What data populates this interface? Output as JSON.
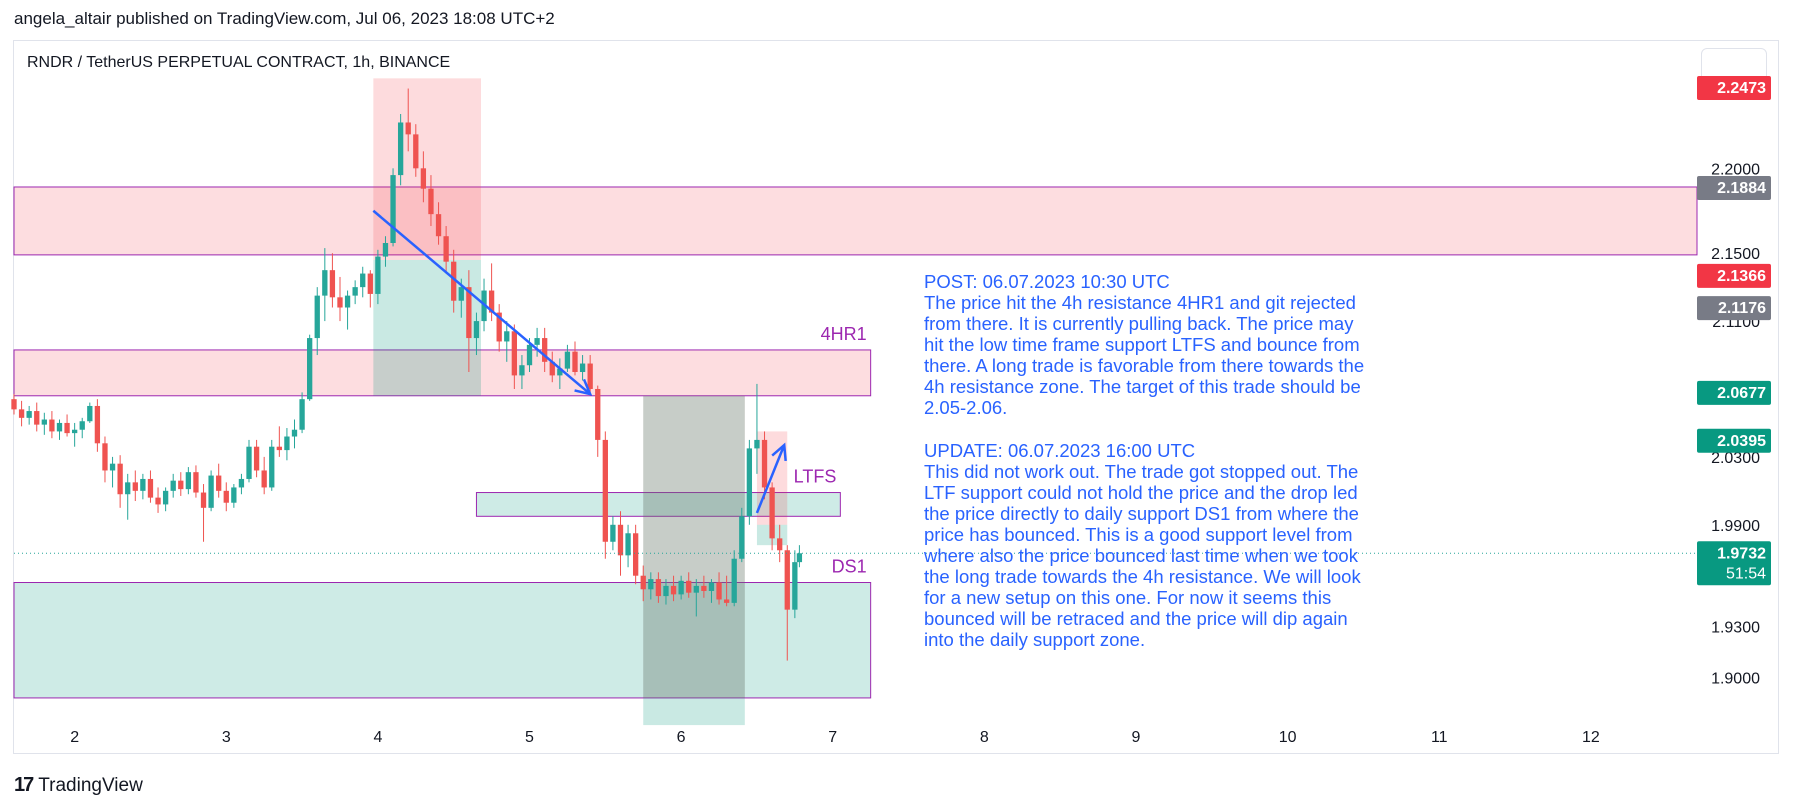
{
  "header": {
    "text": "angela_altair published on TradingView.com, Jul 06, 2023 18:08 UTC+2"
  },
  "chart": {
    "title": "RNDR / TetherUS PERPETUAL CONTRACT, 1h, BINANCE"
  },
  "footer": {
    "brand": "TradingView",
    "logo": "17"
  },
  "colors": {
    "up": "#26a69a",
    "down": "#ef5350",
    "zone_red": "rgba(242,54,69,0.17)",
    "zone_green": "rgba(8,153,129,0.20)",
    "zone_border": "#9c27b0",
    "annotation": "#2962ff",
    "label_purple": "#9c27b0"
  },
  "annotations": {
    "post": "POST: 06.07.2023 10:30 UTC\nThe price hit the 4h resistance 4HR1 and git rejected\nfrom there. It is currently pulling back. The price may\nhit the low time frame support LTFS and bounce from\nthere. A long trade is favorable from there towards the\n4h resistance zone. The target of this trade should be\n2.05-2.06.",
    "update": "UPDATE: 06.07.2023 16:00 UTC\nThis did not work out. The trade got stopped out. The\nLTF support could not hold the price and the drop led\nthe price directly to daily support DS1 from where the\nprice has bounced. This is a good support level from\nwhere also the price bounced last time when we took\nthe long trade towards the 4h resistance. We will look\nfor a new setup on this one. For now it seems this\nbounced will be retraced and the price will dip again\ninto the daily support zone."
  },
  "chart_data": {
    "type": "candlestick",
    "title": "RNDR / TetherUS PERPETUAL CONTRACT, 1h, BINANCE",
    "x_ticks": [
      "2",
      "3",
      "4",
      "5",
      "6",
      "7",
      "8",
      "9",
      "10",
      "11",
      "12"
    ],
    "y_ticks": [
      "2.2000",
      "2.1500",
      "2.1100",
      "2.0300",
      "1.9900",
      "1.9300",
      "1.9000"
    ],
    "y_tick_values": [
      2.2,
      2.15,
      2.11,
      2.03,
      1.99,
      1.93,
      1.9
    ],
    "ylim": [
      1.875,
      2.275
    ],
    "xlim": [
      1.6,
      12.7
    ],
    "price_labels": [
      {
        "text": "2.2473",
        "value": 2.2473,
        "color": "#f23645"
      },
      {
        "text": "2.1884",
        "value": 2.1884,
        "color": "#787b86"
      },
      {
        "text": "2.1366",
        "value": 2.1366,
        "color": "#f23645"
      },
      {
        "text": "2.1176",
        "value": 2.1176,
        "color": "#787b86"
      },
      {
        "text": "2.0677",
        "value": 2.0677,
        "color": "#089981"
      },
      {
        "text": "2.0395",
        "value": 2.0395,
        "color": "#089981"
      },
      {
        "text": "1.9732",
        "value": 1.9732,
        "color": "#089981",
        "sub": "51:54"
      }
    ],
    "current_price": 1.9732,
    "zones": [
      {
        "label": "",
        "x": [
          1.6,
          12.7
        ],
        "y": [
          2.149,
          2.189
        ],
        "fill": "red"
      },
      {
        "label": "4HR1",
        "x": [
          1.6,
          7.25
        ],
        "y": [
          2.066,
          2.093
        ],
        "fill": "red"
      },
      {
        "label": "LTFS",
        "x": [
          4.65,
          7.05
        ],
        "y": [
          1.995,
          2.009
        ],
        "fill": "green"
      },
      {
        "label": "DS1",
        "x": [
          1.6,
          7.25
        ],
        "y": [
          1.888,
          1.956
        ],
        "fill": "green"
      }
    ],
    "positions": [
      {
        "x": [
          3.97,
          4.68
        ],
        "entry": 2.146,
        "stop": 2.253,
        "target": 2.066
      },
      {
        "x": [
          5.75,
          6.42
        ],
        "entry": 2.066,
        "stop": 1.888,
        "target": 1.872
      },
      {
        "x": [
          6.5,
          6.7
        ],
        "entry": 1.99,
        "stop": 2.045,
        "target": 1.978
      }
    ],
    "lines": [
      {
        "x": [
          3.97,
          5.4
        ],
        "y": [
          2.175,
          2.067
        ]
      },
      {
        "x": [
          6.5,
          6.68
        ],
        "y": [
          1.997,
          2.037
        ]
      }
    ],
    "candles": [
      [
        1.6,
        2.064,
        2.067,
        2.055,
        2.058
      ],
      [
        1.65,
        2.058,
        2.063,
        2.048,
        2.053
      ],
      [
        1.7,
        2.053,
        2.06,
        2.049,
        2.057
      ],
      [
        1.75,
        2.057,
        2.062,
        2.045,
        2.049
      ],
      [
        1.8,
        2.049,
        2.056,
        2.043,
        2.052
      ],
      [
        1.85,
        2.052,
        2.057,
        2.041,
        2.045
      ],
      [
        1.9,
        2.045,
        2.052,
        2.04,
        2.05
      ],
      [
        1.95,
        2.05,
        2.055,
        2.042,
        2.044
      ],
      [
        2.0,
        2.044,
        2.05,
        2.036,
        2.046
      ],
      [
        2.05,
        2.046,
        2.053,
        2.041,
        2.051
      ],
      [
        2.1,
        2.051,
        2.062,
        2.05,
        2.06
      ],
      [
        2.15,
        2.06,
        2.064,
        2.033,
        2.038
      ],
      [
        2.2,
        2.038,
        2.042,
        2.015,
        2.022
      ],
      [
        2.25,
        2.022,
        2.03,
        2.012,
        2.026
      ],
      [
        2.3,
        2.026,
        2.031,
        2.0,
        2.008
      ],
      [
        2.35,
        2.008,
        2.02,
        1.993,
        2.015
      ],
      [
        2.4,
        2.015,
        2.022,
        2.004,
        2.01
      ],
      [
        2.45,
        2.01,
        2.02,
        2.005,
        2.017
      ],
      [
        2.5,
        2.017,
        2.022,
        2.003,
        2.006
      ],
      [
        2.55,
        2.006,
        2.012,
        1.997,
        2.002
      ],
      [
        2.6,
        2.002,
        2.012,
        1.998,
        2.01
      ],
      [
        2.65,
        2.01,
        2.02,
        2.006,
        2.016
      ],
      [
        2.7,
        2.016,
        2.021,
        2.007,
        2.011
      ],
      [
        2.75,
        2.011,
        2.024,
        2.008,
        2.021
      ],
      [
        2.8,
        2.021,
        2.025,
        2.006,
        2.009
      ],
      [
        2.85,
        2.009,
        2.014,
        1.98,
        2.0
      ],
      [
        2.9,
        2.0,
        2.022,
        1.998,
        2.019
      ],
      [
        2.95,
        2.019,
        2.026,
        2.006,
        2.01
      ],
      [
        3.0,
        2.01,
        2.015,
        1.998,
        2.003
      ],
      [
        3.05,
        2.003,
        2.014,
        2.0,
        2.012
      ],
      [
        3.1,
        2.012,
        2.02,
        2.008,
        2.017
      ],
      [
        3.15,
        2.017,
        2.04,
        2.015,
        2.036
      ],
      [
        3.2,
        2.036,
        2.04,
        2.018,
        2.022
      ],
      [
        3.25,
        2.022,
        2.03,
        2.008,
        2.012
      ],
      [
        3.3,
        2.012,
        2.04,
        2.01,
        2.036
      ],
      [
        3.35,
        2.036,
        2.048,
        2.03,
        2.034
      ],
      [
        3.4,
        2.034,
        2.047,
        2.028,
        2.042
      ],
      [
        3.45,
        2.042,
        2.052,
        2.035,
        2.046
      ],
      [
        3.5,
        2.046,
        2.068,
        2.044,
        2.064
      ],
      [
        3.55,
        2.064,
        2.102,
        2.063,
        2.1
      ],
      [
        3.6,
        2.1,
        2.13,
        2.09,
        2.125
      ],
      [
        3.65,
        2.125,
        2.153,
        2.11,
        2.14
      ],
      [
        3.7,
        2.14,
        2.15,
        2.118,
        2.124
      ],
      [
        3.75,
        2.124,
        2.136,
        2.11,
        2.118
      ],
      [
        3.8,
        2.118,
        2.128,
        2.105,
        2.125
      ],
      [
        3.85,
        2.125,
        2.134,
        2.12,
        2.13
      ],
      [
        3.9,
        2.13,
        2.142,
        2.124,
        2.138
      ],
      [
        3.95,
        2.138,
        2.14,
        2.118,
        2.126
      ],
      [
        4.0,
        2.126,
        2.152,
        2.12,
        2.148
      ],
      [
        4.05,
        2.148,
        2.16,
        2.142,
        2.156
      ],
      [
        4.1,
        2.156,
        2.2,
        2.154,
        2.196
      ],
      [
        4.15,
        2.196,
        2.232,
        2.19,
        2.227
      ],
      [
        4.2,
        2.227,
        2.247,
        2.21,
        2.22
      ],
      [
        4.25,
        2.22,
        2.226,
        2.195,
        2.2
      ],
      [
        4.3,
        2.2,
        2.21,
        2.18,
        2.188
      ],
      [
        4.35,
        2.188,
        2.196,
        2.166,
        2.173
      ],
      [
        4.4,
        2.173,
        2.18,
        2.155,
        2.16
      ],
      [
        4.45,
        2.16,
        2.166,
        2.138,
        2.145
      ],
      [
        4.5,
        2.145,
        2.152,
        2.115,
        2.122
      ],
      [
        4.55,
        2.122,
        2.135,
        2.112,
        2.13
      ],
      [
        4.6,
        2.13,
        2.14,
        2.08,
        2.1
      ],
      [
        4.65,
        2.1,
        2.115,
        2.09,
        2.11
      ],
      [
        4.7,
        2.11,
        2.135,
        2.104,
        2.128
      ],
      [
        4.75,
        2.128,
        2.144,
        2.11,
        2.115
      ],
      [
        4.8,
        2.115,
        2.12,
        2.092,
        2.098
      ],
      [
        4.85,
        2.098,
        2.11,
        2.086,
        2.104
      ],
      [
        4.9,
        2.104,
        2.108,
        2.07,
        2.078
      ],
      [
        4.95,
        2.078,
        2.09,
        2.07,
        2.084
      ],
      [
        5.0,
        2.084,
        2.1,
        2.08,
        2.096
      ],
      [
        5.05,
        2.096,
        2.106,
        2.089,
        2.1
      ],
      [
        5.1,
        2.1,
        2.106,
        2.08,
        2.086
      ],
      [
        5.15,
        2.086,
        2.092,
        2.074,
        2.078
      ],
      [
        5.2,
        2.078,
        2.088,
        2.07,
        2.082
      ],
      [
        5.25,
        2.082,
        2.096,
        2.08,
        2.092
      ],
      [
        5.3,
        2.092,
        2.098,
        2.078,
        2.08
      ],
      [
        5.35,
        2.08,
        2.09,
        2.075,
        2.085
      ],
      [
        5.4,
        2.085,
        2.09,
        2.068,
        2.07
      ],
      [
        5.45,
        2.07,
        2.072,
        2.03,
        2.04
      ],
      [
        5.5,
        2.04,
        2.045,
        1.97,
        1.98
      ],
      [
        5.55,
        1.98,
        1.995,
        1.975,
        1.99
      ],
      [
        5.6,
        1.99,
        1.998,
        1.96,
        1.972
      ],
      [
        5.65,
        1.972,
        1.99,
        1.965,
        1.985
      ],
      [
        5.7,
        1.985,
        1.99,
        1.955,
        1.96
      ],
      [
        5.75,
        1.96,
        1.966,
        1.945,
        1.952
      ],
      [
        5.8,
        1.952,
        1.962,
        1.946,
        1.958
      ],
      [
        5.85,
        1.958,
        1.962,
        1.944,
        1.948
      ],
      [
        5.9,
        1.948,
        1.958,
        1.943,
        1.954
      ],
      [
        5.95,
        1.954,
        1.96,
        1.945,
        1.949
      ],
      [
        6.0,
        1.949,
        1.96,
        1.946,
        1.957
      ],
      [
        6.05,
        1.957,
        1.962,
        1.947,
        1.95
      ],
      [
        6.1,
        1.95,
        1.958,
        1.936,
        1.954
      ],
      [
        6.15,
        1.954,
        1.96,
        1.947,
        1.951
      ],
      [
        6.2,
        1.951,
        1.958,
        1.944,
        1.956
      ],
      [
        6.25,
        1.956,
        1.962,
        1.943,
        1.946
      ],
      [
        6.3,
        1.946,
        1.96,
        1.942,
        1.944
      ],
      [
        6.35,
        1.944,
        1.975,
        1.942,
        1.97
      ],
      [
        6.4,
        1.97,
        2.0,
        1.968,
        1.995
      ],
      [
        6.45,
        1.995,
        2.04,
        1.99,
        2.035
      ],
      [
        6.5,
        2.035,
        2.073,
        2.02,
        2.04
      ],
      [
        6.55,
        2.04,
        2.045,
        2.005,
        2.012
      ],
      [
        6.6,
        2.012,
        2.015,
        1.975,
        1.982
      ],
      [
        6.65,
        1.982,
        1.99,
        1.968,
        1.975
      ],
      [
        6.7,
        1.975,
        1.978,
        1.91,
        1.94
      ],
      [
        6.75,
        1.94,
        1.975,
        1.935,
        1.968
      ],
      [
        6.78,
        1.968,
        1.978,
        1.965,
        1.9732
      ]
    ]
  }
}
